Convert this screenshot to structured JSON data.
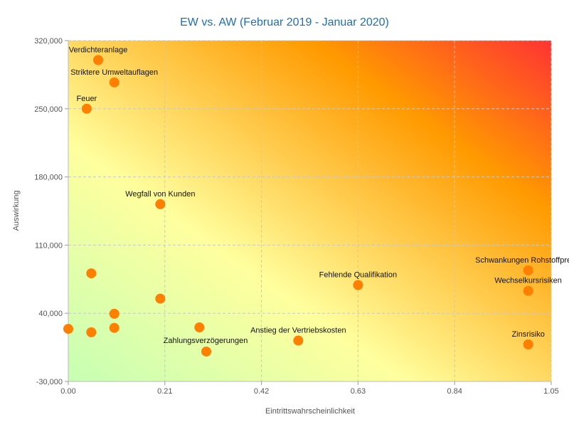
{
  "chart_data": {
    "type": "scatter",
    "title": "EW vs. AW (Februar 2019 - Januar 2020)",
    "xlabel": "Eintrittswahrscheinlichkeit",
    "ylabel": "Auswirkung",
    "xlim": [
      0,
      1.05
    ],
    "ylim": [
      -30000,
      320000
    ],
    "xticks": [
      "0.00",
      "0.21",
      "0.42",
      "0.63",
      "0.84",
      "1.05"
    ],
    "yticks": [
      "-30,000",
      "40,000",
      "110,000",
      "180,000",
      "250,000",
      "320,000"
    ],
    "grid": true,
    "background": "diagonal gradient green (bottom-left) → yellow → orange → red (top-right)",
    "colors": {
      "point": "#ff7f00",
      "title": "#1f6fb5",
      "grad_low": "#c6ffb4",
      "grad_mid": "#ffff9e",
      "grad_high": "#ff9a00",
      "grad_top": "#ff3333"
    },
    "points": [
      {
        "label": "Verdichteranlage",
        "x": 0.065,
        "y": 300000
      },
      {
        "label": "Striktere Umweltauflagen",
        "x": 0.1,
        "y": 277000
      },
      {
        "label": "Feuer",
        "x": 0.04,
        "y": 250000
      },
      {
        "label": "Wegfall von Kunden",
        "x": 0.2,
        "y": 152000
      },
      {
        "label": "Schwankungen Rohstoffpreise",
        "x": 1.0,
        "y": 84000
      },
      {
        "label": "Wechselkursrisiken",
        "x": 1.0,
        "y": 63000
      },
      {
        "label": "Fehlende Qualifikation",
        "x": 0.63,
        "y": 69000
      },
      {
        "label": "Anstieg der Vertriebskosten",
        "x": 0.5,
        "y": 12000
      },
      {
        "label": "Zinsrisiko",
        "x": 1.0,
        "y": 8000
      },
      {
        "label": "Zahlungsverzögerungen",
        "x": 0.3,
        "y": 700,
        "label_below": true
      },
      {
        "label": "",
        "x": 0.05,
        "y": 81000
      },
      {
        "label": "",
        "x": 0.2,
        "y": 55000
      },
      {
        "label": "",
        "x": 0.1,
        "y": 39500
      },
      {
        "label": "",
        "x": 0.1,
        "y": 25000
      },
      {
        "label": "",
        "x": 0.0,
        "y": 24000
      },
      {
        "label": "",
        "x": 0.05,
        "y": 20500
      },
      {
        "label": "",
        "x": 0.285,
        "y": 25500
      }
    ]
  }
}
